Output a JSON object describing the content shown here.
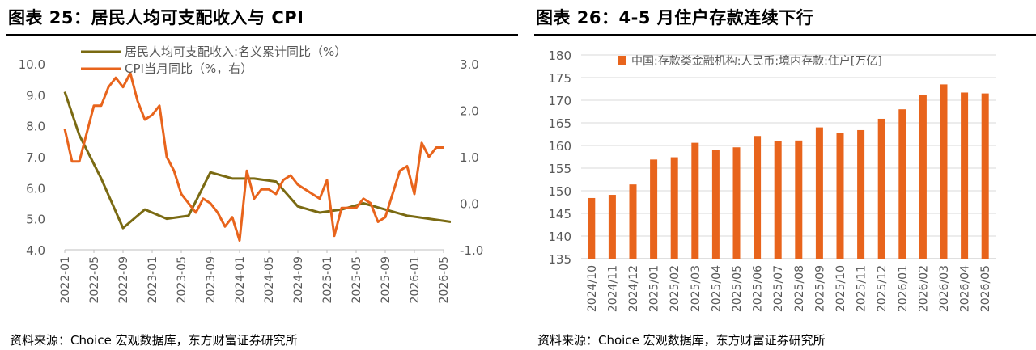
{
  "left": {
    "title": "图表 25：居民人均可支配收入与 CPI",
    "source": "资料来源：Choice 宏观数据库，东方财富证券研究所"
  },
  "right": {
    "title": "图表 26：4-5 月住户存款连续下行",
    "source": "资料来源：Choice 宏观数据库，东方财富证券研究所"
  },
  "colors": {
    "income_line": "#7a6a12",
    "cpi_line": "#e8641c",
    "bar": "#e8641c",
    "axis_text": "#595959",
    "grid": "#d9d9d9"
  },
  "chart_data": [
    {
      "type": "line",
      "x_ticks": [
        "2022-01",
        "2022-05",
        "2022-09",
        "2023-01",
        "2023-05",
        "2023-09",
        "2024-01",
        "2024-05",
        "2024-09",
        "2025-01",
        "2025-05",
        "2025-09",
        "2026-01",
        "2026-05"
      ],
      "y_left": {
        "ylim": [
          4.0,
          10.0
        ],
        "ticks": [
          "4.0",
          "5.0",
          "6.0",
          "7.0",
          "8.0",
          "9.0",
          "10.0"
        ]
      },
      "y_right": {
        "ylim": [
          -1.0,
          3.0
        ],
        "ticks": [
          "-1.0",
          "0.0",
          "1.0",
          "2.0",
          "3.0"
        ]
      },
      "legend_position": "top",
      "series": [
        {
          "name": "居民人均可支配收入:名义累计同比（%）",
          "axis": "left",
          "points": [
            [
              "2022-01",
              9.1
            ],
            [
              "2022-03",
              7.7
            ],
            [
              "2022-06",
              6.3
            ],
            [
              "2022-09",
              4.7
            ],
            [
              "2022-12",
              5.3
            ],
            [
              "2023-03",
              5.0
            ],
            [
              "2023-06",
              5.1
            ],
            [
              "2023-09",
              6.5
            ],
            [
              "2023-12",
              6.3
            ],
            [
              "2024-03",
              6.3
            ],
            [
              "2024-06",
              6.2
            ],
            [
              "2024-09",
              5.4
            ],
            [
              "2024-12",
              5.2
            ],
            [
              "2025-03",
              5.3
            ],
            [
              "2025-06",
              5.5
            ],
            [
              "2025-09",
              5.3
            ],
            [
              "2025-12",
              5.1
            ],
            [
              "2026-03",
              5.0
            ],
            [
              "2026-06",
              4.9
            ]
          ]
        },
        {
          "name": "CPI当月同比（%，右）",
          "axis": "right",
          "points": [
            [
              "2022-01",
              1.6
            ],
            [
              "2022-02",
              0.9
            ],
            [
              "2022-03",
              0.9
            ],
            [
              "2022-04",
              1.5
            ],
            [
              "2022-05",
              2.1
            ],
            [
              "2022-06",
              2.1
            ],
            [
              "2022-07",
              2.5
            ],
            [
              "2022-08",
              2.7
            ],
            [
              "2022-09",
              2.5
            ],
            [
              "2022-10",
              2.8
            ],
            [
              "2022-11",
              2.2
            ],
            [
              "2022-12",
              1.8
            ],
            [
              "2023-01",
              1.9
            ],
            [
              "2023-02",
              2.1
            ],
            [
              "2023-03",
              1.0
            ],
            [
              "2023-04",
              0.7
            ],
            [
              "2023-05",
              0.2
            ],
            [
              "2023-06",
              0.0
            ],
            [
              "2023-07",
              -0.2
            ],
            [
              "2023-08",
              0.1
            ],
            [
              "2023-09",
              0.0
            ],
            [
              "2023-10",
              -0.2
            ],
            [
              "2023-11",
              -0.5
            ],
            [
              "2023-12",
              -0.3
            ],
            [
              "2024-01",
              -0.8
            ],
            [
              "2024-02",
              0.7
            ],
            [
              "2024-03",
              0.1
            ],
            [
              "2024-04",
              0.3
            ],
            [
              "2024-05",
              0.3
            ],
            [
              "2024-06",
              0.2
            ],
            [
              "2024-07",
              0.5
            ],
            [
              "2024-08",
              0.6
            ],
            [
              "2024-09",
              0.4
            ],
            [
              "2024-10",
              0.3
            ],
            [
              "2024-11",
              0.2
            ],
            [
              "2024-12",
              0.1
            ],
            [
              "2025-01",
              0.5
            ],
            [
              "2025-02",
              -0.7
            ],
            [
              "2025-03",
              -0.1
            ],
            [
              "2025-04",
              -0.1
            ],
            [
              "2025-05",
              -0.1
            ],
            [
              "2025-06",
              0.1
            ],
            [
              "2025-07",
              0.0
            ],
            [
              "2025-08",
              -0.4
            ],
            [
              "2025-09",
              -0.3
            ],
            [
              "2025-10",
              0.2
            ],
            [
              "2025-11",
              0.7
            ],
            [
              "2025-12",
              0.8
            ],
            [
              "2026-01",
              0.2
            ],
            [
              "2026-02",
              1.3
            ],
            [
              "2026-03",
              1.0
            ],
            [
              "2026-04",
              1.2
            ],
            [
              "2026-05",
              1.2
            ]
          ]
        }
      ]
    },
    {
      "type": "bar",
      "legend": "中国:存款类金融机构:人民币:境内存款:住户[万亿]",
      "legend_position": "top",
      "categories": [
        "2024/10",
        "2024/11",
        "2024/12",
        "2025/01",
        "2025/02",
        "2025/03",
        "2025/04",
        "2025/05",
        "2025/06",
        "2025/07",
        "2025/08",
        "2025/09",
        "2025/10",
        "2025/11",
        "2025/12",
        "2026/01",
        "2026/02",
        "2026/03",
        "2026/04",
        "2026/05"
      ],
      "values": [
        148.4,
        149.1,
        151.4,
        156.9,
        157.4,
        160.6,
        159.1,
        159.6,
        162.1,
        160.9,
        161.1,
        164.0,
        162.7,
        163.4,
        165.9,
        168.0,
        171.1,
        173.5,
        171.7,
        171.5
      ],
      "ylim": [
        135,
        180
      ],
      "y_ticks": [
        "135",
        "140",
        "145",
        "150",
        "155",
        "160",
        "165",
        "170",
        "175",
        "180"
      ]
    }
  ]
}
